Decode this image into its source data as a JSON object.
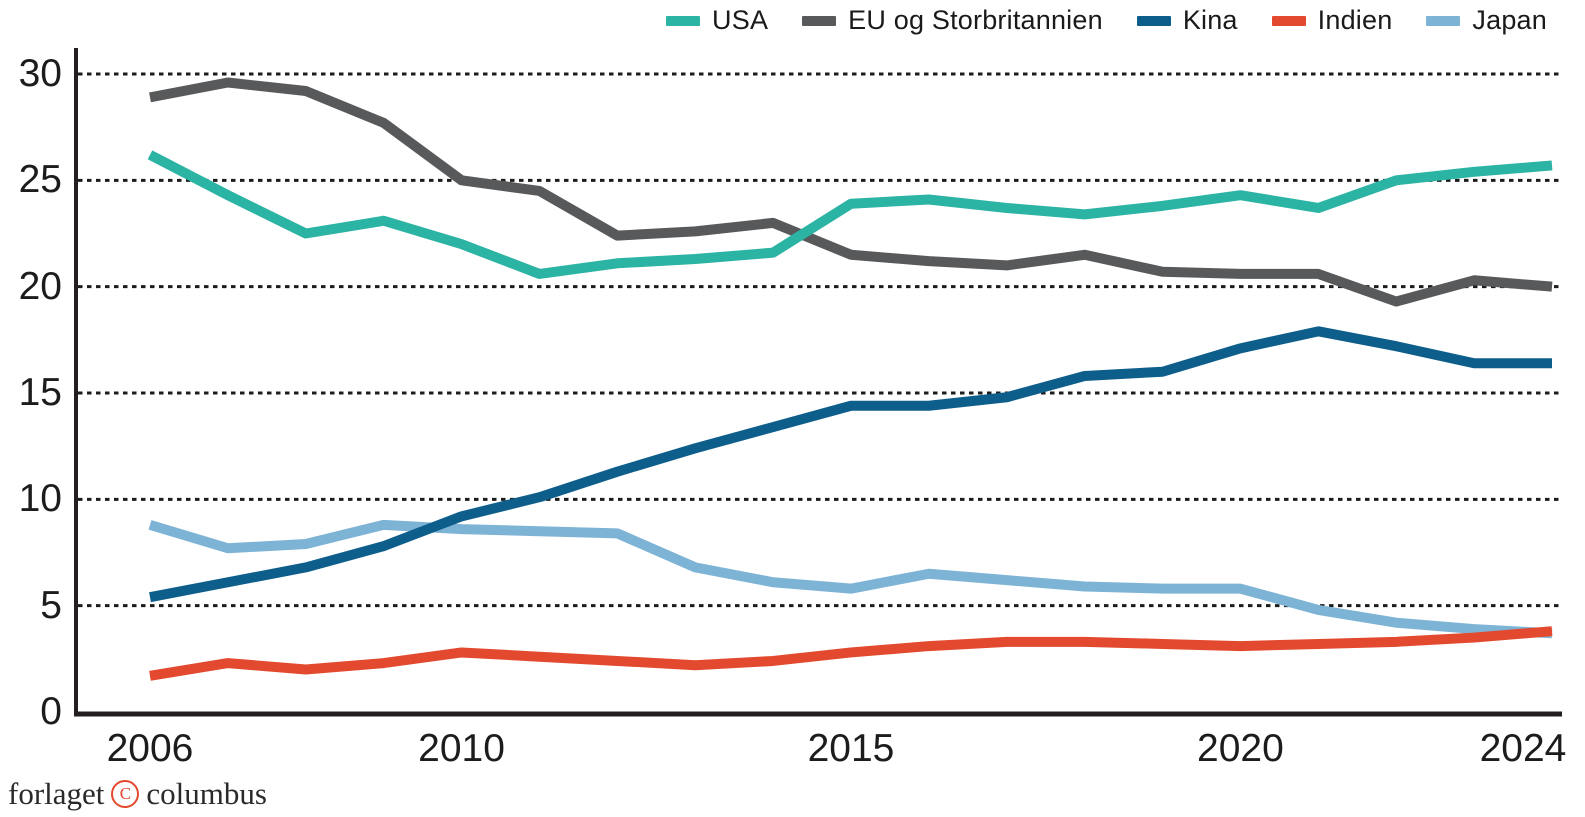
{
  "chart_data": {
    "type": "line",
    "x": [
      2006,
      2007,
      2008,
      2009,
      2010,
      2011,
      2012,
      2013,
      2014,
      2015,
      2016,
      2017,
      2018,
      2019,
      2020,
      2021,
      2022,
      2023,
      2024
    ],
    "series": [
      {
        "name": "USA",
        "color": "#2bb3a3",
        "values": [
          26.2,
          24.3,
          22.5,
          23.1,
          22.0,
          20.6,
          21.1,
          21.3,
          21.6,
          23.9,
          24.1,
          23.7,
          23.4,
          23.8,
          24.3,
          23.7,
          25.0,
          25.4,
          25.7
        ]
      },
      {
        "name": "EU og Storbritannien",
        "color": "#58595b",
        "values": [
          28.9,
          29.6,
          29.2,
          27.7,
          25.0,
          24.5,
          22.4,
          22.6,
          23.0,
          21.5,
          21.2,
          21.0,
          21.5,
          20.7,
          20.6,
          20.6,
          19.3,
          20.3,
          20.0
        ]
      },
      {
        "name": "Kina",
        "color": "#0e5e8c",
        "values": [
          5.4,
          6.1,
          6.8,
          7.8,
          9.2,
          10.1,
          11.3,
          12.4,
          13.4,
          14.4,
          14.4,
          14.8,
          15.8,
          16.0,
          17.1,
          17.9,
          17.2,
          16.4,
          16.4
        ]
      },
      {
        "name": "Indien",
        "color": "#e2492f",
        "values": [
          1.7,
          2.3,
          2.0,
          2.3,
          2.8,
          2.6,
          2.4,
          2.2,
          2.4,
          2.8,
          3.1,
          3.3,
          3.3,
          3.2,
          3.1,
          3.2,
          3.3,
          3.5,
          3.8
        ]
      },
      {
        "name": "Japan",
        "color": "#7db3d5",
        "values": [
          8.8,
          7.7,
          7.9,
          8.8,
          8.6,
          8.5,
          8.4,
          6.8,
          6.1,
          5.8,
          6.5,
          6.2,
          5.9,
          5.8,
          5.8,
          4.8,
          4.2,
          3.9,
          3.7
        ]
      }
    ],
    "ylim": [
      0,
      30
    ],
    "yticks": [
      0,
      5,
      10,
      15,
      20,
      25,
      30
    ],
    "xticks": [
      2006,
      2010,
      2015,
      2020,
      2024
    ],
    "grid": "horizontal-dotted",
    "legend_position": "top-right",
    "colors": {
      "axis": "#231f20",
      "gridline": "#1c1c1c"
    }
  },
  "footer": {
    "word_left": "forlaget",
    "copyright_letter": "C",
    "word_right": "columbus"
  }
}
